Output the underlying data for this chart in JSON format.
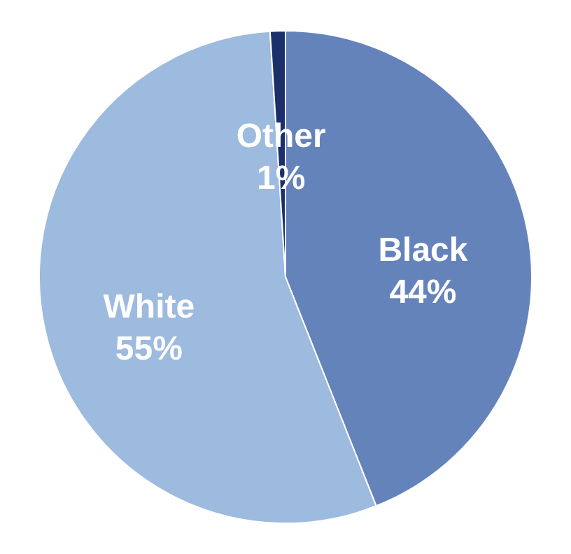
{
  "chart_data": {
    "type": "pie",
    "categories": [
      "Black",
      "White",
      "Other"
    ],
    "values": [
      44,
      55,
      1
    ],
    "colors": [
      "#6583bb",
      "#9dbadf",
      "#1b2f6b"
    ],
    "value_labels": [
      "44%",
      "55%",
      "1%"
    ],
    "legend": false
  }
}
